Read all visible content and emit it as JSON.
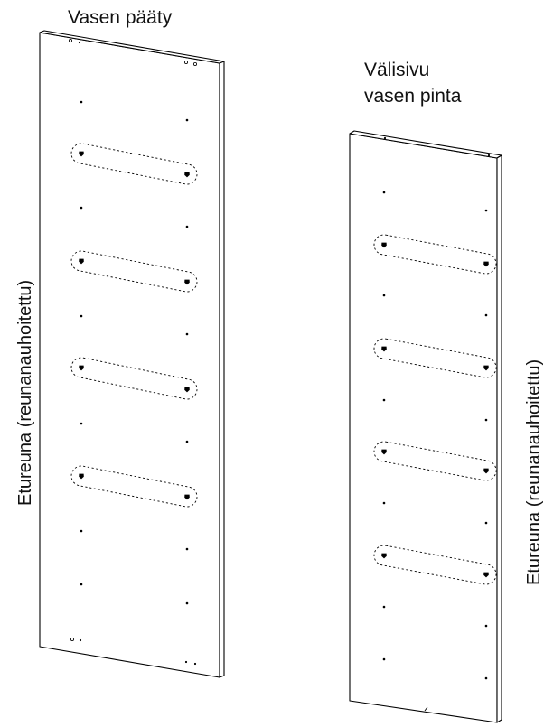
{
  "labels": {
    "left_panel_title": "Vasen pääty",
    "right_panel_title_line1": "Välisivu",
    "right_panel_title_line2": "vasen pinta",
    "left_edge_label": "Etureuna (reunanauhoitettu)",
    "right_edge_label": "Etureuna (reunanauhoitettu)"
  },
  "panels": [
    {
      "id": "vasen-paaty",
      "slot_count": 4
    },
    {
      "id": "valisivu",
      "slot_count": 4
    }
  ]
}
